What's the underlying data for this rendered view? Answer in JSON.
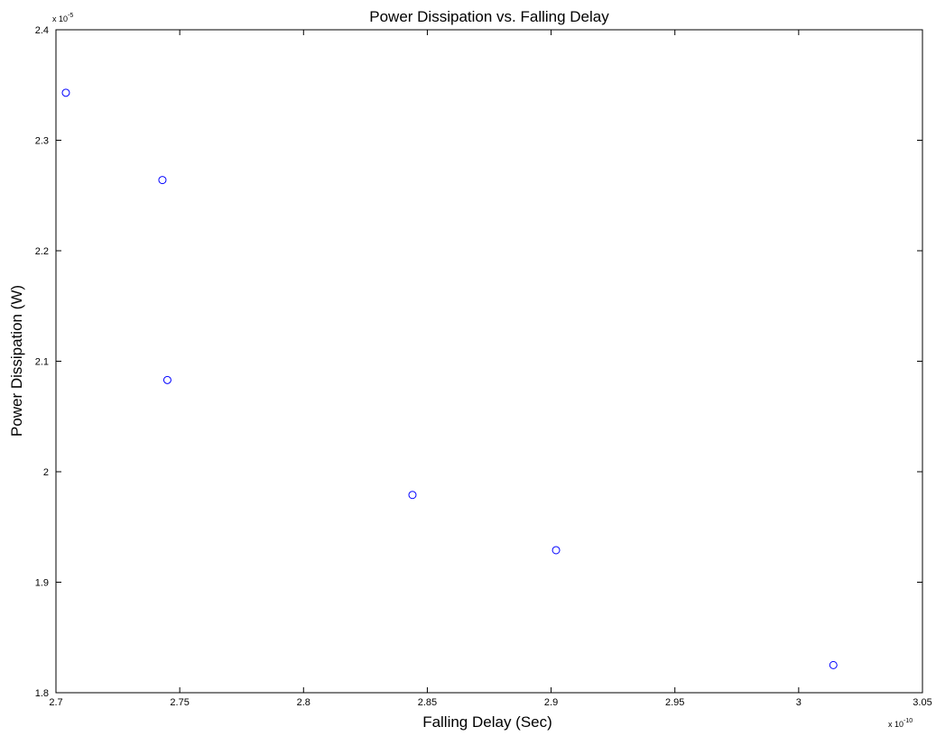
{
  "chart_data": {
    "type": "scatter",
    "title": "Power Dissipation vs. Falling Delay",
    "xlabel": "Falling Delay (Sec)",
    "ylabel": "Power Dissipation (W)",
    "x_multiplier": {
      "base": "x 10",
      "exponent": "-10"
    },
    "y_multiplier": {
      "base": "x 10",
      "exponent": "-5"
    },
    "xlim": [
      2.7,
      3.05
    ],
    "ylim": [
      1.8,
      2.4
    ],
    "xticks": [
      2.7,
      2.75,
      2.8,
      2.85,
      2.9,
      2.95,
      3.0,
      3.05
    ],
    "xtick_labels": [
      "2.7",
      "2.75",
      "2.8",
      "2.85",
      "2.9",
      "2.95",
      "3",
      "3.05"
    ],
    "yticks": [
      1.8,
      1.9,
      2.0,
      2.1,
      2.2,
      2.3,
      2.4
    ],
    "ytick_labels": [
      "1.8",
      "1.9",
      "2",
      "2.1",
      "2.2",
      "2.3",
      "2.4"
    ],
    "grid": false,
    "marker": "circle-open",
    "series": [
      {
        "x": [
          2.704,
          2.743,
          2.745,
          2.844,
          2.902,
          3.014
        ],
        "y": [
          2.343,
          2.264,
          2.083,
          1.979,
          1.929,
          1.825
        ]
      }
    ],
    "colors": {
      "marker": "#0000ff",
      "axes": "#000000",
      "background": "#ffffff"
    }
  }
}
